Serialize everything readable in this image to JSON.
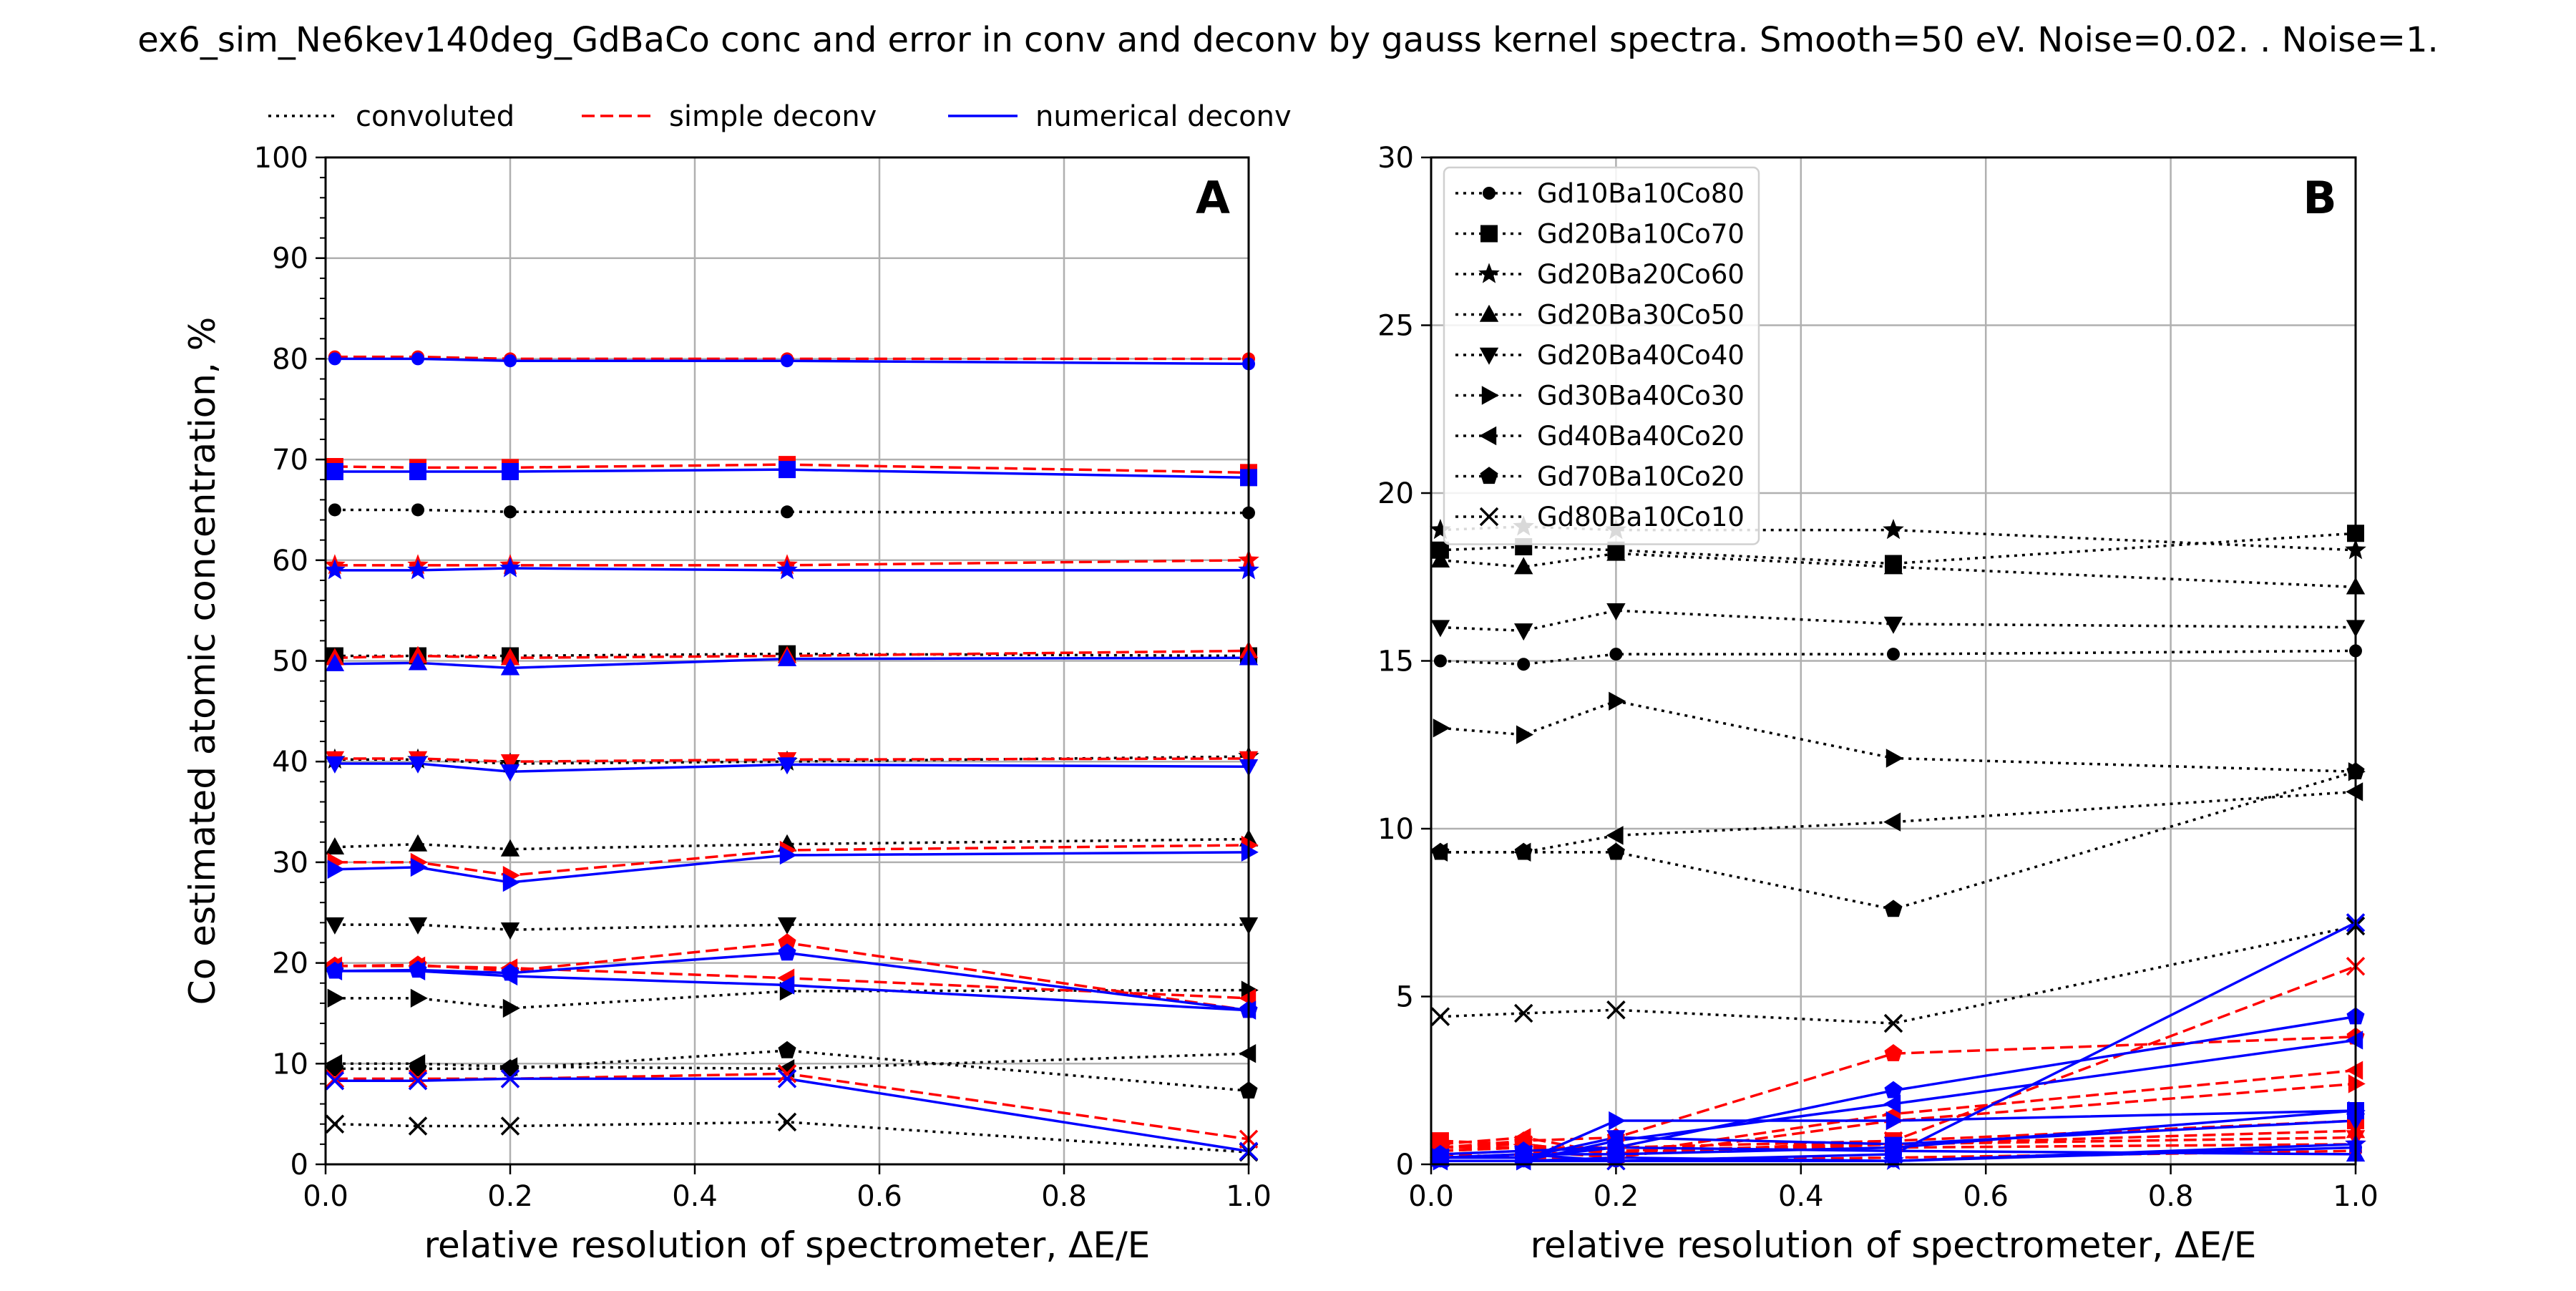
{
  "figure": {
    "title": "ex6_sim_Ne6kev140deg_GdBaCo conc and error in conv and deconv by gauss kernel spectra. Smooth=50 eV. Noise=0.02. . Noise=1."
  },
  "styles": {
    "convoluted": {
      "label": "convoluted",
      "color": "#000000",
      "dash": "4,7"
    },
    "simple": {
      "label": "simple deconv",
      "color": "#ff0000",
      "dash": "18,8"
    },
    "numerical": {
      "label": "numerical deconv",
      "color": "#0000ff",
      "dash": ""
    }
  },
  "markers": {
    "Gd10Ba10Co80": "circle",
    "Gd20Ba10Co70": "square",
    "Gd20Ba20Co60": "star",
    "Gd20Ba30Co50": "triangle-up",
    "Gd20Ba40Co40": "triangle-down",
    "Gd30Ba40Co30": "triangle-right",
    "Gd40Ba40Co20": "triangle-left",
    "Gd70Ba10Co20": "pentagon",
    "Gd80Ba10Co10": "x"
  },
  "chart_data": [
    {
      "id": "A",
      "type": "line",
      "panel_label": "A",
      "xlabel": "relative resolution of spectrometer, ΔE/E",
      "ylabel": "Co estimated atomic concentration, %",
      "xlim": [
        0,
        1
      ],
      "ylim": [
        0,
        100
      ],
      "xticks": [
        0.0,
        0.2,
        0.4,
        0.6,
        0.8,
        1.0
      ],
      "xtick_labels": [
        "0.0",
        "0.2",
        "0.4",
        "0.6",
        "0.8",
        "1.0"
      ],
      "yticks": [
        0,
        10,
        20,
        30,
        40,
        50,
        60,
        70,
        80,
        90,
        100
      ],
      "ytick_labels": [
        "0",
        "10",
        "20",
        "30",
        "40",
        "50",
        "60",
        "70",
        "80",
        "90",
        "100"
      ],
      "grid": true,
      "legend": {
        "position": "above-left",
        "entries": [
          "convoluted",
          "simple deconv",
          "numerical deconv"
        ]
      },
      "x": [
        0.01,
        0.1,
        0.2,
        0.5,
        1.0
      ],
      "series": [
        {
          "composition": "Gd10Ba10Co80",
          "kind": "convoluted",
          "values": [
            65.0,
            65.0,
            64.8,
            64.8,
            64.7
          ]
        },
        {
          "composition": "Gd10Ba10Co80",
          "kind": "simple",
          "values": [
            80.2,
            80.2,
            80.0,
            80.0,
            80.0
          ]
        },
        {
          "composition": "Gd10Ba10Co80",
          "kind": "numerical",
          "values": [
            80.0,
            80.0,
            79.8,
            79.8,
            79.5
          ]
        },
        {
          "composition": "Gd20Ba10Co70",
          "kind": "convoluted",
          "values": [
            50.5,
            50.5,
            50.5,
            50.7,
            50.5
          ]
        },
        {
          "composition": "Gd20Ba10Co70",
          "kind": "simple",
          "values": [
            69.3,
            69.2,
            69.2,
            69.5,
            68.7
          ]
        },
        {
          "composition": "Gd20Ba10Co70",
          "kind": "numerical",
          "values": [
            68.8,
            68.8,
            68.8,
            69.0,
            68.2
          ]
        },
        {
          "composition": "Gd20Ba20Co60",
          "kind": "convoluted",
          "values": [
            40.2,
            40.2,
            39.8,
            40.0,
            40.5
          ]
        },
        {
          "composition": "Gd20Ba20Co60",
          "kind": "simple",
          "values": [
            59.5,
            59.5,
            59.5,
            59.5,
            60.0
          ]
        },
        {
          "composition": "Gd20Ba20Co60",
          "kind": "numerical",
          "values": [
            59.0,
            59.0,
            59.2,
            59.0,
            59.0
          ]
        },
        {
          "composition": "Gd20Ba30Co50",
          "kind": "convoluted",
          "values": [
            31.5,
            31.8,
            31.3,
            31.8,
            32.3
          ]
        },
        {
          "composition": "Gd20Ba30Co50",
          "kind": "simple",
          "values": [
            50.3,
            50.5,
            50.3,
            50.5,
            51.0
          ]
        },
        {
          "composition": "Gd20Ba30Co50",
          "kind": "numerical",
          "values": [
            49.7,
            49.8,
            49.3,
            50.2,
            50.3
          ]
        },
        {
          "composition": "Gd20Ba40Co40",
          "kind": "convoluted",
          "values": [
            23.8,
            23.8,
            23.3,
            23.8,
            23.8
          ]
        },
        {
          "composition": "Gd20Ba40Co40",
          "kind": "simple",
          "values": [
            40.3,
            40.3,
            40.0,
            40.2,
            40.3
          ]
        },
        {
          "composition": "Gd20Ba40Co40",
          "kind": "numerical",
          "values": [
            39.8,
            39.8,
            39.0,
            39.7,
            39.5
          ]
        },
        {
          "composition": "Gd30Ba40Co30",
          "kind": "convoluted",
          "values": [
            16.5,
            16.5,
            15.5,
            17.2,
            17.3
          ]
        },
        {
          "composition": "Gd30Ba40Co30",
          "kind": "simple",
          "values": [
            30.0,
            30.0,
            28.7,
            31.2,
            31.7
          ]
        },
        {
          "composition": "Gd30Ba40Co30",
          "kind": "numerical",
          "values": [
            29.3,
            29.5,
            28.0,
            30.7,
            31.0
          ]
        },
        {
          "composition": "Gd40Ba40Co20",
          "kind": "convoluted",
          "values": [
            10.0,
            10.0,
            9.7,
            9.5,
            11.0
          ]
        },
        {
          "composition": "Gd40Ba40Co20",
          "kind": "simple",
          "values": [
            19.7,
            19.7,
            19.5,
            18.5,
            16.5
          ]
        },
        {
          "composition": "Gd40Ba40Co20",
          "kind": "numerical",
          "values": [
            19.2,
            19.2,
            18.7,
            17.8,
            15.3
          ]
        },
        {
          "composition": "Gd70Ba10Co20",
          "kind": "convoluted",
          "values": [
            9.5,
            9.5,
            9.5,
            11.3,
            7.3
          ]
        },
        {
          "composition": "Gd70Ba10Co20",
          "kind": "simple",
          "values": [
            19.7,
            19.8,
            19.2,
            22.0,
            15.3
          ]
        },
        {
          "composition": "Gd70Ba10Co20",
          "kind": "numerical",
          "values": [
            19.2,
            19.3,
            19.0,
            21.0,
            15.3
          ]
        },
        {
          "composition": "Gd80Ba10Co10",
          "kind": "convoluted",
          "values": [
            4.0,
            3.8,
            3.8,
            4.2,
            1.2
          ]
        },
        {
          "composition": "Gd80Ba10Co10",
          "kind": "simple",
          "values": [
            8.5,
            8.5,
            8.5,
            9.0,
            2.5
          ]
        },
        {
          "composition": "Gd80Ba10Co10",
          "kind": "numerical",
          "values": [
            8.3,
            8.3,
            8.5,
            8.5,
            1.3
          ]
        }
      ]
    },
    {
      "id": "B",
      "type": "line",
      "panel_label": "B",
      "xlabel": "relative resolution of spectrometer, ΔE/E",
      "ylabel": "",
      "xlim": [
        0,
        1
      ],
      "ylim": [
        0,
        30
      ],
      "xticks": [
        0.0,
        0.2,
        0.4,
        0.6,
        0.8,
        1.0
      ],
      "xtick_labels": [
        "0.0",
        "0.2",
        "0.4",
        "0.6",
        "0.8",
        "1.0"
      ],
      "yticks": [
        0,
        5,
        10,
        15,
        20,
        25,
        30
      ],
      "ytick_labels": [
        "0",
        "5",
        "10",
        "15",
        "20",
        "25",
        "30"
      ],
      "grid": true,
      "legend": {
        "position": "top-left",
        "entries": [
          "Gd10Ba10Co80",
          "Gd20Ba10Co70",
          "Gd20Ba20Co60",
          "Gd20Ba30Co50",
          "Gd20Ba40Co40",
          "Gd30Ba40Co30",
          "Gd40Ba40Co20",
          "Gd70Ba10Co20",
          "Gd80Ba10Co10"
        ]
      },
      "x": [
        0.01,
        0.1,
        0.2,
        0.5,
        1.0
      ],
      "series": [
        {
          "composition": "Gd10Ba10Co80",
          "kind": "convoluted",
          "values": [
            15.0,
            14.9,
            15.2,
            15.2,
            15.3
          ]
        },
        {
          "composition": "Gd10Ba10Co80",
          "kind": "simple",
          "values": [
            0.3,
            0.2,
            0.1,
            0.2,
            0.4
          ]
        },
        {
          "composition": "Gd10Ba10Co80",
          "kind": "numerical",
          "values": [
            0.1,
            0.1,
            0.1,
            0.1,
            0.5
          ]
        },
        {
          "composition": "Gd20Ba10Co70",
          "kind": "convoluted",
          "values": [
            18.3,
            18.4,
            18.3,
            17.9,
            18.8
          ]
        },
        {
          "composition": "Gd20Ba10Co70",
          "kind": "simple",
          "values": [
            0.7,
            0.6,
            0.3,
            0.7,
            1.3
          ]
        },
        {
          "composition": "Gd20Ba10Co70",
          "kind": "numerical",
          "values": [
            0.2,
            0.3,
            0.3,
            0.5,
            1.6
          ]
        },
        {
          "composition": "Gd20Ba20Co60",
          "kind": "convoluted",
          "values": [
            18.9,
            19.0,
            18.9,
            18.9,
            18.3
          ]
        },
        {
          "composition": "Gd20Ba20Co60",
          "kind": "simple",
          "values": [
            0.5,
            0.5,
            0.4,
            0.5,
            0.6
          ]
        },
        {
          "composition": "Gd20Ba20Co60",
          "kind": "numerical",
          "values": [
            0.1,
            0.1,
            0.2,
            0.1,
            0.6
          ]
        },
        {
          "composition": "Gd20Ba30Co50",
          "kind": "convoluted",
          "values": [
            18.0,
            17.8,
            18.2,
            17.8,
            17.2
          ]
        },
        {
          "composition": "Gd20Ba30Co50",
          "kind": "simple",
          "values": [
            0.4,
            0.5,
            0.4,
            0.6,
            1.0
          ]
        },
        {
          "composition": "Gd20Ba30Co50",
          "kind": "numerical",
          "values": [
            0.2,
            0.2,
            0.5,
            0.4,
            0.3
          ]
        },
        {
          "composition": "Gd20Ba40Co40",
          "kind": "convoluted",
          "values": [
            16.0,
            15.9,
            16.5,
            16.1,
            16.0
          ]
        },
        {
          "composition": "Gd20Ba40Co40",
          "kind": "simple",
          "values": [
            0.5,
            0.6,
            0.3,
            0.6,
            0.8
          ]
        },
        {
          "composition": "Gd20Ba40Co40",
          "kind": "numerical",
          "values": [
            0.2,
            0.2,
            0.8,
            0.6,
            1.3
          ]
        },
        {
          "composition": "Gd30Ba40Co30",
          "kind": "convoluted",
          "values": [
            13.0,
            12.8,
            13.8,
            12.1,
            11.7
          ]
        },
        {
          "composition": "Gd30Ba40Co30",
          "kind": "simple",
          "values": [
            0.3,
            0.4,
            0.2,
            1.3,
            2.4
          ]
        },
        {
          "composition": "Gd30Ba40Co30",
          "kind": "numerical",
          "values": [
            0.1,
            0.1,
            1.3,
            1.3,
            1.6
          ]
        },
        {
          "composition": "Gd40Ba40Co20",
          "kind": "convoluted",
          "values": [
            9.3,
            9.3,
            9.8,
            10.2,
            11.1
          ]
        },
        {
          "composition": "Gd40Ba40Co20",
          "kind": "simple",
          "values": [
            0.6,
            0.8,
            0.3,
            1.5,
            2.8
          ]
        },
        {
          "composition": "Gd40Ba40Co20",
          "kind": "numerical",
          "values": [
            0.1,
            0.1,
            0.7,
            1.8,
            3.7
          ]
        },
        {
          "composition": "Gd70Ba10Co20",
          "kind": "convoluted",
          "values": [
            9.3,
            9.3,
            9.3,
            7.6,
            11.7
          ]
        },
        {
          "composition": "Gd70Ba10Co20",
          "kind": "simple",
          "values": [
            0.5,
            0.7,
            0.8,
            3.3,
            3.8
          ]
        },
        {
          "composition": "Gd70Ba10Co20",
          "kind": "numerical",
          "values": [
            0.3,
            0.4,
            0.5,
            2.2,
            4.4
          ]
        },
        {
          "composition": "Gd80Ba10Co10",
          "kind": "convoluted",
          "values": [
            4.4,
            4.5,
            4.6,
            4.2,
            7.1
          ]
        },
        {
          "composition": "Gd80Ba10Co10",
          "kind": "simple",
          "values": [
            0.4,
            0.5,
            0.5,
            0.7,
            5.9
          ]
        },
        {
          "composition": "Gd80Ba10Co10",
          "kind": "numerical",
          "values": [
            0.2,
            0.3,
            0.1,
            0.3,
            7.2
          ]
        }
      ]
    }
  ]
}
